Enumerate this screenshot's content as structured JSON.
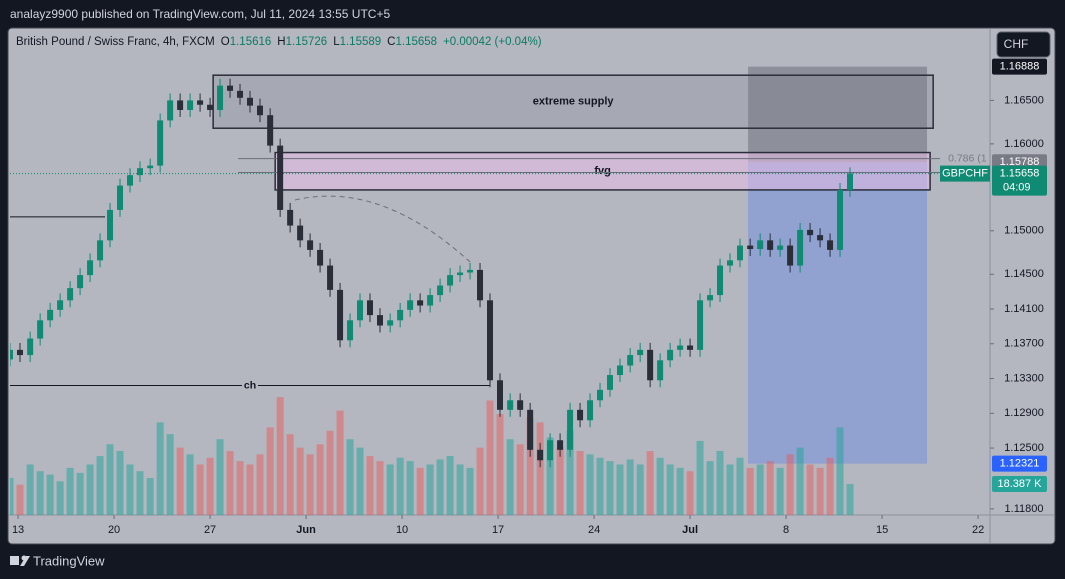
{
  "header": "analayz9900 published on TradingView.com, Jul 11, 2024 13:55 UTC+5",
  "footer": "TradingView",
  "currency": "CHF",
  "chart_data": {
    "type": "candlestick",
    "legend": {
      "title": "British Pound / Swiss Franc, 4h, FXCM",
      "items": [
        {
          "key": "O",
          "value": 1.15616
        },
        {
          "key": "H",
          "value": 1.15726
        },
        {
          "key": "L",
          "value": 1.15589
        },
        {
          "key": "C",
          "value": 1.15658
        }
      ],
      "change": "+0.00042 (+0.04%)"
    },
    "up_color": "#0f8a73",
    "down_color": "#2a2e39",
    "volume_up_color": "rgba(38,166,154,0.55)",
    "volume_down_color": "rgba(239,83,80,0.45)",
    "xlim": [
      -0.42,
      50.36
    ],
    "xticks": [
      {
        "value": 0,
        "label": "13"
      },
      {
        "value": 5,
        "label": "20"
      },
      {
        "value": 10,
        "label": "27"
      },
      {
        "value": 15,
        "label": "Jun"
      },
      {
        "value": 20,
        "label": "10"
      },
      {
        "value": 25,
        "label": "17"
      },
      {
        "value": 30,
        "label": "24"
      },
      {
        "value": 35,
        "label": "Jul"
      },
      {
        "value": 40,
        "label": "8"
      },
      {
        "value": 45,
        "label": "15"
      },
      {
        "value": 50,
        "label": "22"
      }
    ],
    "ylim": [
      1.1173,
      1.1731
    ],
    "yticks": [
      {
        "value": 1.165,
        "label": "1.16500"
      },
      {
        "value": 1.16,
        "label": "1.16000"
      },
      {
        "value": 1.15,
        "label": "1.15000"
      },
      {
        "value": 1.145,
        "label": "1.14500"
      },
      {
        "value": 1.141,
        "label": "1.14100"
      },
      {
        "value": 1.137,
        "label": "1.13700"
      },
      {
        "value": 1.133,
        "label": "1.13300"
      },
      {
        "value": 1.129,
        "label": "1.12900"
      },
      {
        "value": 1.125,
        "label": "1.12500"
      },
      {
        "value": 1.118,
        "label": "1.11800"
      }
    ],
    "vlim": [
      0,
      288000
    ],
    "x": [
      -0.42,
      0.1,
      0.63,
      1.15,
      1.67,
      2.19,
      2.71,
      3.23,
      3.75,
      4.27,
      4.79,
      5.31,
      5.83,
      6.35,
      6.88,
      7.4,
      7.92,
      8.44,
      8.96,
      9.48,
      10.0,
      10.52,
      11.04,
      11.56,
      12.08,
      12.6,
      13.13,
      13.65,
      14.17,
      14.69,
      15.21,
      15.73,
      16.25,
      16.77,
      17.29,
      17.81,
      18.33,
      18.85,
      19.38,
      19.9,
      20.42,
      20.94,
      21.46,
      21.98,
      22.5,
      23.02,
      23.54,
      24.06,
      24.58,
      25.1,
      25.63,
      26.15,
      26.67,
      27.19,
      27.71,
      28.23,
      28.75,
      29.27,
      29.79,
      30.31,
      30.83,
      31.35,
      31.88,
      32.4,
      32.92,
      33.44,
      33.96,
      34.48,
      35.0,
      35.52,
      36.04,
      36.56,
      37.08,
      37.6,
      38.13,
      38.65,
      39.17,
      39.69,
      40.21,
      40.73,
      41.25,
      41.77,
      42.29,
      42.81,
      43.33
    ],
    "candles": [
      [
        1.1352,
        1.1371,
        1.1344,
        1.1363
      ],
      [
        1.1363,
        1.1371,
        1.1349,
        1.1357
      ],
      [
        1.1357,
        1.1384,
        1.1349,
        1.1376
      ],
      [
        1.1376,
        1.1405,
        1.1368,
        1.1397
      ],
      [
        1.1397,
        1.1417,
        1.1389,
        1.1409
      ],
      [
        1.1409,
        1.1428,
        1.1401,
        1.142
      ],
      [
        1.142,
        1.1442,
        1.1412,
        1.1434
      ],
      [
        1.1434,
        1.1457,
        1.1426,
        1.1449
      ],
      [
        1.1449,
        1.1474,
        1.1441,
        1.1466
      ],
      [
        1.1466,
        1.1497,
        1.1458,
        1.1489
      ],
      [
        1.1489,
        1.1532,
        1.1481,
        1.1524
      ],
      [
        1.1524,
        1.156,
        1.1516,
        1.1552
      ],
      [
        1.1552,
        1.1572,
        1.1544,
        1.1564
      ],
      [
        1.1564,
        1.158,
        1.1556,
        1.1572
      ],
      [
        1.1572,
        1.1583,
        1.1564,
        1.1575
      ],
      [
        1.1575,
        1.1635,
        1.1567,
        1.1627
      ],
      [
        1.1627,
        1.1658,
        1.1619,
        1.165
      ],
      [
        1.165,
        1.1658,
        1.1631,
        1.1639
      ],
      [
        1.1639,
        1.1658,
        1.1631,
        1.165
      ],
      [
        1.165,
        1.1658,
        1.1637,
        1.1645
      ],
      [
        1.1645,
        1.1653,
        1.1631,
        1.1639
      ],
      [
        1.1639,
        1.1675,
        1.1631,
        1.1667
      ],
      [
        1.1667,
        1.1675,
        1.1653,
        1.1661
      ],
      [
        1.1661,
        1.1669,
        1.1645,
        1.1653
      ],
      [
        1.1653,
        1.1661,
        1.1636,
        1.1644
      ],
      [
        1.1644,
        1.1652,
        1.1625,
        1.1633
      ],
      [
        1.1633,
        1.1641,
        1.159,
        1.1598
      ],
      [
        1.1598,
        1.1606,
        1.1516,
        1.1524
      ],
      [
        1.1524,
        1.1532,
        1.1498,
        1.1506
      ],
      [
        1.1506,
        1.1514,
        1.1481,
        1.1489
      ],
      [
        1.1489,
        1.1497,
        1.147,
        1.1478
      ],
      [
        1.1478,
        1.1486,
        1.1452,
        1.146
      ],
      [
        1.146,
        1.1468,
        1.1424,
        1.1432
      ],
      [
        1.1432,
        1.144,
        1.1366,
        1.1374
      ],
      [
        1.1374,
        1.1405,
        1.1366,
        1.1397
      ],
      [
        1.1397,
        1.1428,
        1.1389,
        1.142
      ],
      [
        1.142,
        1.1428,
        1.1395,
        1.1403
      ],
      [
        1.1403,
        1.1411,
        1.1383,
        1.1391
      ],
      [
        1.1391,
        1.1405,
        1.1383,
        1.1397
      ],
      [
        1.1397,
        1.1417,
        1.1389,
        1.1409
      ],
      [
        1.1409,
        1.1428,
        1.1401,
        1.142
      ],
      [
        1.142,
        1.1428,
        1.1406,
        1.1414
      ],
      [
        1.1414,
        1.1434,
        1.1406,
        1.1426
      ],
      [
        1.1426,
        1.1445,
        1.1418,
        1.1437
      ],
      [
        1.1437,
        1.1457,
        1.1429,
        1.1449
      ],
      [
        1.1449,
        1.146,
        1.1441,
        1.1452
      ],
      [
        1.1452,
        1.1463,
        1.1444,
        1.1455
      ],
      [
        1.1455,
        1.1463,
        1.1412,
        1.142
      ],
      [
        1.142,
        1.1428,
        1.132,
        1.1328
      ],
      [
        1.1328,
        1.1336,
        1.1286,
        1.1294
      ],
      [
        1.1294,
        1.1313,
        1.1286,
        1.1305
      ],
      [
        1.1305,
        1.1313,
        1.1286,
        1.1294
      ],
      [
        1.1294,
        1.1302,
        1.124,
        1.1248
      ],
      [
        1.1248,
        1.1256,
        1.1228,
        1.1236
      ],
      [
        1.1236,
        1.1267,
        1.1228,
        1.1259
      ],
      [
        1.1259,
        1.1267,
        1.124,
        1.1248
      ],
      [
        1.1248,
        1.1302,
        1.124,
        1.1294
      ],
      [
        1.1294,
        1.1302,
        1.1274,
        1.1282
      ],
      [
        1.1282,
        1.1313,
        1.1274,
        1.1305
      ],
      [
        1.1305,
        1.1325,
        1.1297,
        1.1317
      ],
      [
        1.1317,
        1.1342,
        1.1309,
        1.1334
      ],
      [
        1.1334,
        1.1353,
        1.1326,
        1.1345
      ],
      [
        1.1345,
        1.1365,
        1.1337,
        1.1357
      ],
      [
        1.1357,
        1.1371,
        1.1349,
        1.1363
      ],
      [
        1.1363,
        1.1371,
        1.132,
        1.1328
      ],
      [
        1.1328,
        1.1359,
        1.132,
        1.1351
      ],
      [
        1.1351,
        1.1371,
        1.1343,
        1.1363
      ],
      [
        1.1363,
        1.1376,
        1.1355,
        1.1368
      ],
      [
        1.1368,
        1.1376,
        1.1355,
        1.1363
      ],
      [
        1.1363,
        1.1428,
        1.1355,
        1.142
      ],
      [
        1.142,
        1.1434,
        1.1412,
        1.1426
      ],
      [
        1.1426,
        1.1468,
        1.1418,
        1.146
      ],
      [
        1.146,
        1.1474,
        1.1452,
        1.1466
      ],
      [
        1.1466,
        1.1491,
        1.1458,
        1.1483
      ],
      [
        1.1483,
        1.1491,
        1.1471,
        1.1479
      ],
      [
        1.1479,
        1.1497,
        1.1471,
        1.1489
      ],
      [
        1.1489,
        1.1497,
        1.147,
        1.1478
      ],
      [
        1.1478,
        1.1491,
        1.147,
        1.1483
      ],
      [
        1.1483,
        1.1491,
        1.1452,
        1.146
      ],
      [
        1.146,
        1.1509,
        1.1452,
        1.1501
      ],
      [
        1.1501,
        1.1509,
        1.1487,
        1.1495
      ],
      [
        1.1495,
        1.1503,
        1.1481,
        1.1489
      ],
      [
        1.1489,
        1.1497,
        1.147,
        1.1478
      ],
      [
        1.1478,
        1.1555,
        1.147,
        1.1547
      ],
      [
        1.1547,
        1.1573,
        1.1539,
        1.1566
      ]
    ],
    "volumes": [
      22000,
      18000,
      30000,
      26000,
      24000,
      20000,
      28000,
      25000,
      30000,
      35000,
      42000,
      38000,
      30000,
      26000,
      22000,
      55000,
      48000,
      40000,
      36000,
      30000,
      34000,
      45000,
      38000,
      32000,
      30000,
      36000,
      52000,
      70000,
      48000,
      40000,
      36000,
      42000,
      50000,
      62000,
      45000,
      40000,
      35000,
      32000,
      30000,
      34000,
      32000,
      28000,
      30000,
      33000,
      35000,
      30000,
      28000,
      40000,
      68000,
      60000,
      45000,
      42000,
      58000,
      55000,
      46000,
      40000,
      50000,
      38000,
      36000,
      34000,
      32000,
      30000,
      33000,
      30000,
      38000,
      34000,
      30000,
      28000,
      26000,
      44000,
      32000,
      38000,
      30000,
      34000,
      28000,
      30000,
      32000,
      28000,
      36000,
      40000,
      30000,
      28000,
      34000,
      52000,
      18387
    ],
    "volume_label": {
      "value": 18387,
      "label": "18.387 K"
    },
    "zones": [
      {
        "label": "extreme supply",
        "x": [
          10.16,
          47.66
        ],
        "y": [
          1.1618,
          1.1679
        ],
        "color": "rgba(120,123,134,0.22)"
      },
      {
        "label": "fvg",
        "x": [
          13.39,
          47.5
        ],
        "y": [
          1.1547,
          1.159
        ],
        "color": "rgba(232,190,230,0.55)"
      }
    ],
    "fib": {
      "x": [
        11.46,
        48.02
      ],
      "levels": [
        1.1583,
        1.1567
      ],
      "label": "0.786 (1"
    },
    "levels": [
      {
        "label": "ch",
        "value": 1.1322,
        "x": [
          -0.42,
          24.58
        ]
      },
      {
        "value": 1.1516,
        "x": [
          -0.42,
          4.53
        ]
      }
    ],
    "position": {
      "x": [
        38.02,
        47.34
      ],
      "entry": {
        "value": 1.15788,
        "label": "1.15788"
      },
      "stop": {
        "value": 1.16888,
        "label": "1.16888"
      },
      "target": {
        "value": 1.12321,
        "label": "1.12321"
      },
      "stop_color": "rgba(110,113,124,0.55)",
      "target_color": "rgba(41,98,255,0.25)"
    },
    "last_price": {
      "value": 1.15658,
      "label": "1.15658",
      "symbol": "GBPCHF",
      "countdown": "04:09"
    }
  }
}
